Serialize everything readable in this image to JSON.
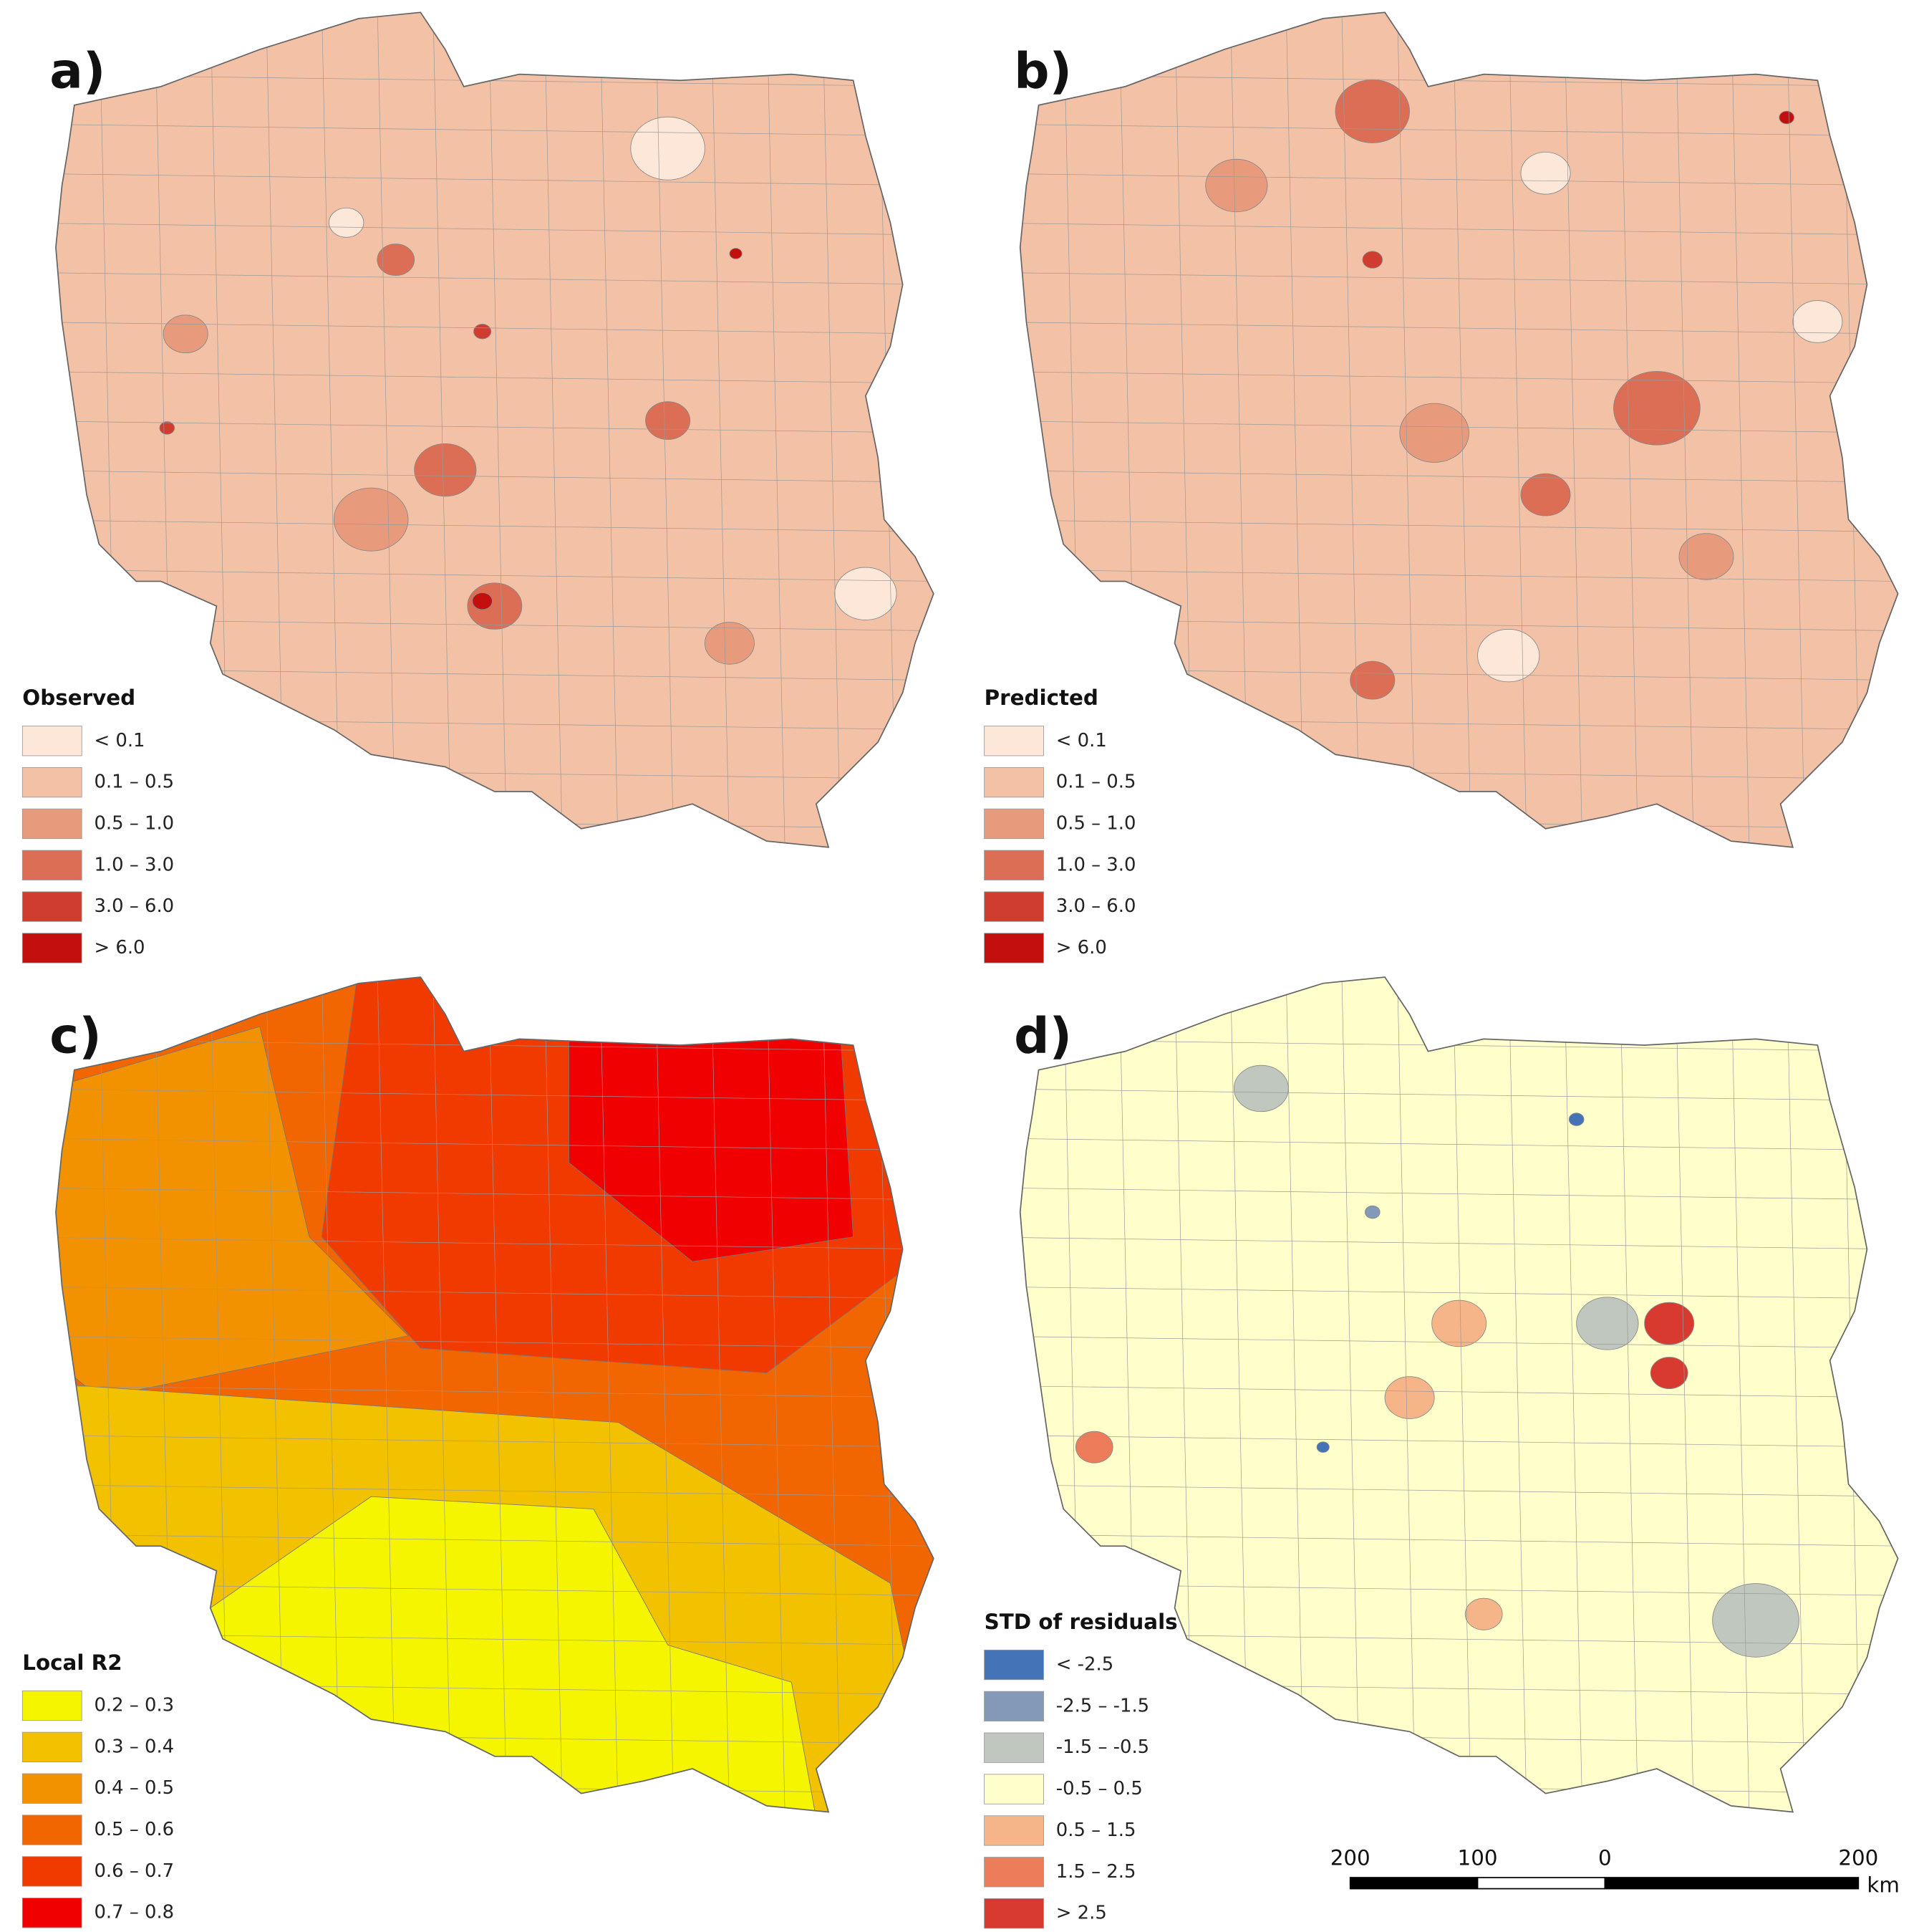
{
  "panels": [
    {
      "label": "a)",
      "legend_title": "Observed",
      "legend": [
        {
          "label": "< 0.1",
          "color": "#fde7d8"
        },
        {
          "label": "0.1 – 0.5",
          "color": "#f2c1a6"
        },
        {
          "label": "0.5 – 1.0",
          "color": "#e89a7d"
        },
        {
          "label": "1.0 – 3.0",
          "color": "#dc6e55"
        },
        {
          "label": "3.0 – 6.0",
          "color": "#cf3c30"
        },
        {
          "label": "> 6.0",
          "color": "#c40f0f"
        }
      ]
    },
    {
      "label": "b)",
      "legend_title": "Predicted",
      "legend": [
        {
          "label": "< 0.1",
          "color": "#fde7d8"
        },
        {
          "label": "0.1 – 0.5",
          "color": "#f2c1a6"
        },
        {
          "label": "0.5 – 1.0",
          "color": "#e89a7d"
        },
        {
          "label": "1.0 – 3.0",
          "color": "#dc6e55"
        },
        {
          "label": "3.0 – 6.0",
          "color": "#cf3c30"
        },
        {
          "label": "> 6.0",
          "color": "#c40f0f"
        }
      ]
    },
    {
      "label": "c)",
      "legend_title": "Local R2",
      "legend": [
        {
          "label": "0.2 – 0.3",
          "color": "#f5f500"
        },
        {
          "label": "0.3 – 0.4",
          "color": "#f2c100"
        },
        {
          "label": "0.4 – 0.5",
          "color": "#f29200"
        },
        {
          "label": "0.5 – 0.6",
          "color": "#f16600"
        },
        {
          "label": "0.6 – 0.7",
          "color": "#f03a00"
        },
        {
          "label": "0.7 – 0.8",
          "color": "#f00000"
        }
      ]
    },
    {
      "label": "d)",
      "legend_title": "STD of residuals",
      "legend": [
        {
          "label": "< -2.5",
          "color": "#4573b8"
        },
        {
          "label": "-2.5 – -1.5",
          "color": "#8499b8"
        },
        {
          "label": "-1.5 – -0.5",
          "color": "#c0c7bf"
        },
        {
          "label": "-0.5 – 0.5",
          "color": "#ffffcc"
        },
        {
          "label": "0.5 – 1.5",
          "color": "#f6b589"
        },
        {
          "label": "1.5 – 2.5",
          "color": "#ec7c5a"
        },
        {
          "label": "> 2.5",
          "color": "#d93a2f"
        }
      ]
    }
  ],
  "scale_bar": {
    "ticks": [
      "200",
      "100",
      "0",
      "200"
    ],
    "unit": "km"
  }
}
